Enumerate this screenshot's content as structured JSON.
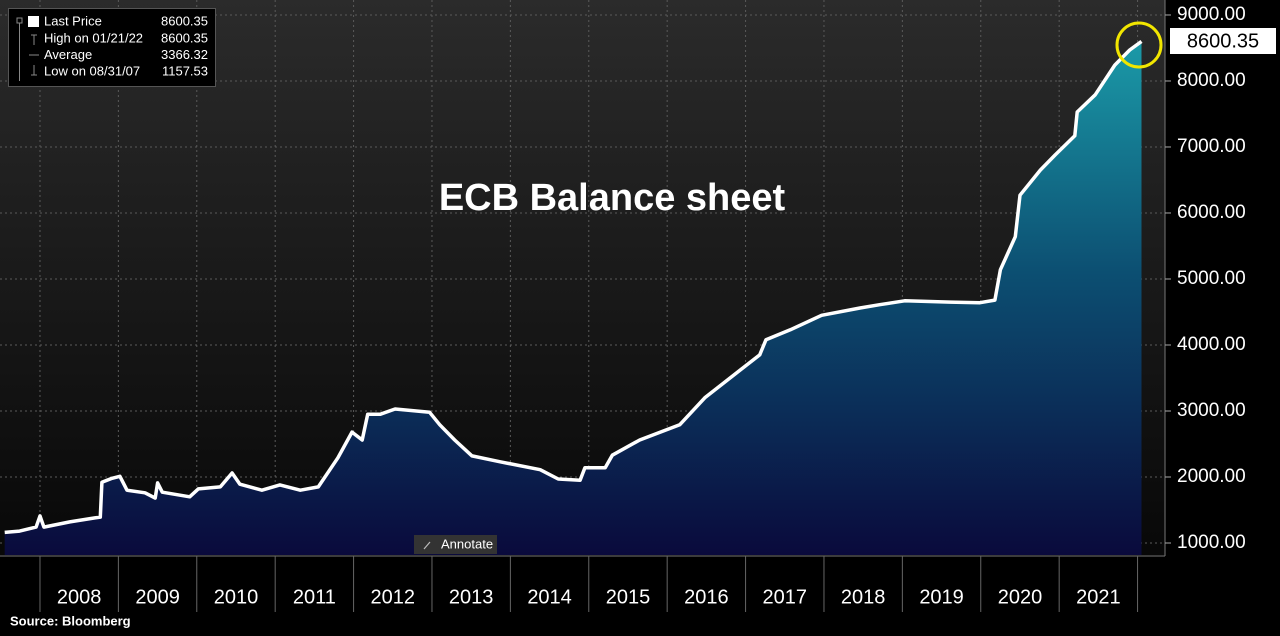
{
  "chart_data": {
    "type": "area",
    "title": "ECB Balance sheet",
    "source": "Source: Bloomberg",
    "button_label": "Annotate",
    "last_price": 8600.35,
    "legend": [
      {
        "label": "High on 01/21/22",
        "value": 8600.35
      },
      {
        "label": "Average",
        "value": 3366.32
      },
      {
        "label": "Low on 08/31/07",
        "value": 1157.53
      }
    ],
    "x": [
      2007.55,
      2007.74,
      2007.95,
      2008.0,
      2008.05,
      2008.38,
      2008.7,
      2008.77,
      2008.79,
      2008.92,
      2009.02,
      2009.11,
      2009.34,
      2009.47,
      2009.5,
      2009.56,
      2009.91,
      2010.02,
      2010.3,
      2010.45,
      2010.55,
      2010.83,
      2011.06,
      2011.32,
      2011.55,
      2011.8,
      2011.98,
      2012.11,
      2012.18,
      2012.34,
      2012.53,
      2012.97,
      2013.1,
      2013.29,
      2013.51,
      2013.87,
      2014.38,
      2014.61,
      2014.89,
      2014.95,
      2015.21,
      2015.3,
      2015.65,
      2016.16,
      2016.48,
      2016.93,
      2017.18,
      2017.26,
      2017.57,
      2017.97,
      2018.46,
      2018.71,
      2019.03,
      2019.61,
      2019.99,
      2020.18,
      2020.25,
      2020.44,
      2020.5,
      2020.76,
      2020.95,
      2021.2,
      2021.23,
      2021.46,
      2021.71,
      2021.9,
      2022.05
    ],
    "series": [
      {
        "name": "Last Price",
        "color": "#ffffff",
        "values": [
          1160,
          1180,
          1240,
          1410,
          1240,
          1320,
          1380,
          1390,
          1920,
          1980,
          2010,
          1800,
          1760,
          1680,
          1910,
          1770,
          1700,
          1820,
          1850,
          2060,
          1890,
          1800,
          1880,
          1800,
          1850,
          2290,
          2680,
          2560,
          2950,
          2950,
          3030,
          2980,
          2790,
          2560,
          2320,
          2230,
          2110,
          1970,
          1950,
          2140,
          2140,
          2330,
          2560,
          2790,
          3200,
          3620,
          3850,
          4080,
          4230,
          4450,
          4560,
          4610,
          4670,
          4650,
          4640,
          4680,
          5140,
          5640,
          6270,
          6650,
          6880,
          7170,
          7530,
          7790,
          8240,
          8470,
          8600.35
        ]
      }
    ],
    "xlim": [
      2007.49,
      2022.35
    ],
    "xticks": [
      {
        "value": 2008.5,
        "label": "2008"
      },
      {
        "value": 2009.5,
        "label": "2009"
      },
      {
        "value": 2010.5,
        "label": "2010"
      },
      {
        "value": 2011.5,
        "label": "2011"
      },
      {
        "value": 2012.5,
        "label": "2012"
      },
      {
        "value": 2013.5,
        "label": "2013"
      },
      {
        "value": 2014.5,
        "label": "2014"
      },
      {
        "value": 2015.5,
        "label": "2015"
      },
      {
        "value": 2016.5,
        "label": "2016"
      },
      {
        "value": 2017.5,
        "label": "2017"
      },
      {
        "value": 2018.5,
        "label": "2018"
      },
      {
        "value": 2019.5,
        "label": "2019"
      },
      {
        "value": 2020.5,
        "label": "2020"
      },
      {
        "value": 2021.5,
        "label": "2021"
      }
    ],
    "xgrid": [
      2008,
      2009,
      2010,
      2011,
      2012,
      2013,
      2014,
      2015,
      2016,
      2017,
      2018,
      2019,
      2020,
      2021,
      2022
    ],
    "ylim": [
      818,
      9227
    ],
    "yticks": [
      {
        "value": 1000,
        "label": "1000.00"
      },
      {
        "value": 2000,
        "label": "2000.00"
      },
      {
        "value": 3000,
        "label": "3000.00"
      },
      {
        "value": 4000,
        "label": "4000.00"
      },
      {
        "value": 5000,
        "label": "5000.00"
      },
      {
        "value": 6000,
        "label": "6000.00"
      },
      {
        "value": 7000,
        "label": "7000.00"
      },
      {
        "value": 8000,
        "label": "8000.00"
      },
      {
        "value": 9000,
        "label": "9000.00"
      }
    ],
    "grid": true
  }
}
